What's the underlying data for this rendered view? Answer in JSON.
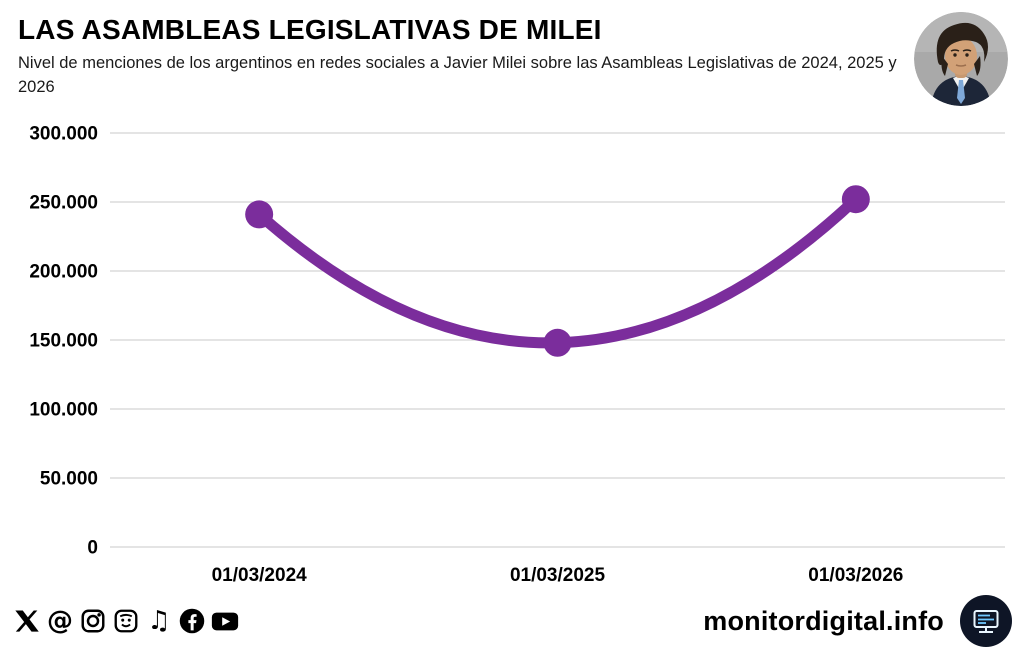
{
  "header": {
    "title": "LAS ASAMBLEAS LEGISLATIVAS DE MILEI",
    "subtitle": "Nivel de menciones de los argentinos en redes sociales a Javier Milei sobre las Asambleas Legislativas de 2024, 2025 y 2026"
  },
  "chart_data": {
    "type": "line",
    "categories": [
      "01/03/2024",
      "01/03/2025",
      "01/03/2026"
    ],
    "values": [
      241000,
      148000,
      252000
    ],
    "title": "LAS ASAMBLEAS LEGISLATIVAS DE MILEI",
    "xlabel": "",
    "ylabel": "",
    "ylim": [
      0,
      300000
    ],
    "yticks": [
      300000,
      250000,
      200000,
      150000,
      100000,
      50000,
      0
    ],
    "ytick_labels": [
      "300.000",
      "250.000",
      "200.000",
      "150.000",
      "100.000",
      "50.000",
      "0"
    ],
    "grid": true,
    "grid_color": "#c9c9c9",
    "legend": "none",
    "line_color": "#7b2d9c",
    "marker_color": "#7b2d9c",
    "line_width": 11,
    "marker_radius": 14
  },
  "footer": {
    "site": "monitordigital.info",
    "social_icons": [
      "x-icon",
      "threads-icon",
      "instagram-icon",
      "meme-face-icon",
      "tiktok-icon",
      "facebook-icon",
      "youtube-icon"
    ],
    "brand_icon": "monitor-icon"
  },
  "colors": {
    "background": "#ffffff",
    "accent_purple": "#7b2d9c",
    "text": "#000000",
    "logo_circle": "#0e1526",
    "logo_screen": "#6fc7ff"
  }
}
